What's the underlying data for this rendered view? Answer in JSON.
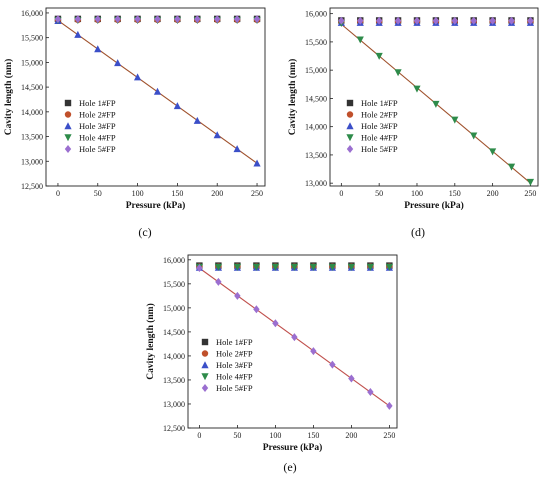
{
  "colors": {
    "hole1": "#333333",
    "hole2": "#c0502b",
    "hole3": "#3b4fc8",
    "hole4": "#2e8b4a",
    "hole5": "#9b6fd0",
    "fit_line": "#a0522d",
    "fit_line_e": "#c0504d"
  },
  "chart_data": [
    {
      "type": "scatter",
      "panel_label": "(c)",
      "xlabel": "Pressure (kPa)",
      "ylabel": "Cavity length (nm)",
      "xlim": [
        -15,
        260
      ],
      "ylim": [
        12500,
        16100
      ],
      "xticks": [
        "0",
        "50",
        "100",
        "150",
        "200",
        "250"
      ],
      "yticks": [
        "12,500",
        "13,000",
        "13,500",
        "14,000",
        "14,500",
        "15,000",
        "15,500",
        "16,000"
      ],
      "legend_position": "lower-left",
      "x": [
        0,
        25,
        50,
        75,
        100,
        125,
        150,
        175,
        200,
        225,
        250
      ],
      "series": [
        {
          "name": "Hole 1#FP",
          "marker": "square",
          "color_key": "hole1",
          "values": [
            15880,
            15880,
            15880,
            15880,
            15880,
            15880,
            15880,
            15880,
            15880,
            15880,
            15880
          ]
        },
        {
          "name": "Hole 2#FP",
          "marker": "circle",
          "color_key": "hole2",
          "values": [
            15860,
            15860,
            15860,
            15860,
            15860,
            15860,
            15860,
            15860,
            15860,
            15860,
            15860
          ]
        },
        {
          "name": "Hole 3#FP",
          "marker": "triangle-up",
          "color_key": "hole3",
          "values": [
            15840,
            15560,
            15270,
            14990,
            14700,
            14410,
            14120,
            13820,
            13530,
            13250,
            12960
          ]
        },
        {
          "name": "Hole 4#FP",
          "marker": "triangle-down",
          "color_key": "hole4",
          "values": [
            15850,
            15850,
            15850,
            15850,
            15850,
            15850,
            15850,
            15850,
            15850,
            15850,
            15850
          ]
        },
        {
          "name": "Hole 5#FP",
          "marker": "diamond",
          "color_key": "hole5",
          "values": [
            15875,
            15875,
            15875,
            15875,
            15875,
            15875,
            15875,
            15875,
            15875,
            15875,
            15875
          ]
        }
      ],
      "fit_series_index": 2
    },
    {
      "type": "scatter",
      "panel_label": "(d)",
      "xlabel": "Pressure (kPa)",
      "ylabel": "Cavity length (nm)",
      "xlim": [
        -15,
        260
      ],
      "ylim": [
        12950,
        16100
      ],
      "xticks": [
        "0",
        "50",
        "100",
        "150",
        "200",
        "250"
      ],
      "yticks": [
        "13,000",
        "13,500",
        "14,000",
        "14,500",
        "15,000",
        "15,500",
        "16,000"
      ],
      "legend_position": "lower-left",
      "x": [
        0,
        25,
        50,
        75,
        100,
        125,
        150,
        175,
        200,
        225,
        250
      ],
      "series": [
        {
          "name": "Hole 1#FP",
          "marker": "square",
          "color_key": "hole1",
          "values": [
            15880,
            15880,
            15880,
            15880,
            15880,
            15880,
            15880,
            15880,
            15880,
            15880,
            15880
          ]
        },
        {
          "name": "Hole 2#FP",
          "marker": "circle",
          "color_key": "hole2",
          "values": [
            15860,
            15860,
            15860,
            15860,
            15860,
            15860,
            15860,
            15860,
            15860,
            15860,
            15860
          ]
        },
        {
          "name": "Hole 3#FP",
          "marker": "triangle-up",
          "color_key": "hole3",
          "values": [
            15840,
            15840,
            15840,
            15840,
            15840,
            15840,
            15840,
            15840,
            15840,
            15840,
            15840
          ]
        },
        {
          "name": "Hole 4#FP",
          "marker": "triangle-down",
          "color_key": "hole4",
          "values": [
            15830,
            15540,
            15250,
            14960,
            14670,
            14400,
            14120,
            13840,
            13560,
            13290,
            13020
          ]
        },
        {
          "name": "Hole 5#FP",
          "marker": "diamond",
          "color_key": "hole5",
          "values": [
            15875,
            15875,
            15875,
            15875,
            15875,
            15875,
            15875,
            15875,
            15875,
            15875,
            15875
          ]
        }
      ],
      "fit_series_index": 3
    },
    {
      "type": "scatter",
      "panel_label": "(e)",
      "xlabel": "Pressure (kPa)",
      "ylabel": "Cavity length (nm)",
      "xlim": [
        -15,
        260
      ],
      "ylim": [
        12500,
        16100
      ],
      "xticks": [
        "0",
        "50",
        "100",
        "150",
        "200",
        "250"
      ],
      "yticks": [
        "12,500",
        "13,000",
        "13,500",
        "14,000",
        "14,500",
        "15,000",
        "15,500",
        "16,000"
      ],
      "legend_position": "lower-left",
      "x": [
        0,
        25,
        50,
        75,
        100,
        125,
        150,
        175,
        200,
        225,
        250
      ],
      "series": [
        {
          "name": "Hole 1#FP",
          "marker": "square",
          "color_key": "hole1",
          "values": [
            15880,
            15880,
            15880,
            15880,
            15880,
            15880,
            15880,
            15880,
            15880,
            15880,
            15880
          ]
        },
        {
          "name": "Hole 2#FP",
          "marker": "circle",
          "color_key": "hole2",
          "values": [
            15860,
            15860,
            15860,
            15860,
            15860,
            15860,
            15860,
            15860,
            15860,
            15860,
            15860
          ]
        },
        {
          "name": "Hole 3#FP",
          "marker": "triangle-up",
          "color_key": "hole3",
          "values": [
            15840,
            15840,
            15840,
            15840,
            15840,
            15840,
            15840,
            15840,
            15840,
            15840,
            15840
          ]
        },
        {
          "name": "Hole 4#FP",
          "marker": "triangle-down",
          "color_key": "hole4",
          "values": [
            15850,
            15850,
            15850,
            15850,
            15850,
            15850,
            15850,
            15850,
            15850,
            15850,
            15850
          ]
        },
        {
          "name": "Hole 5#FP",
          "marker": "diamond",
          "color_key": "hole5",
          "values": [
            15830,
            15540,
            15250,
            14970,
            14680,
            14390,
            14100,
            13820,
            13530,
            13250,
            12960
          ]
        }
      ],
      "fit_series_index": 4
    }
  ]
}
